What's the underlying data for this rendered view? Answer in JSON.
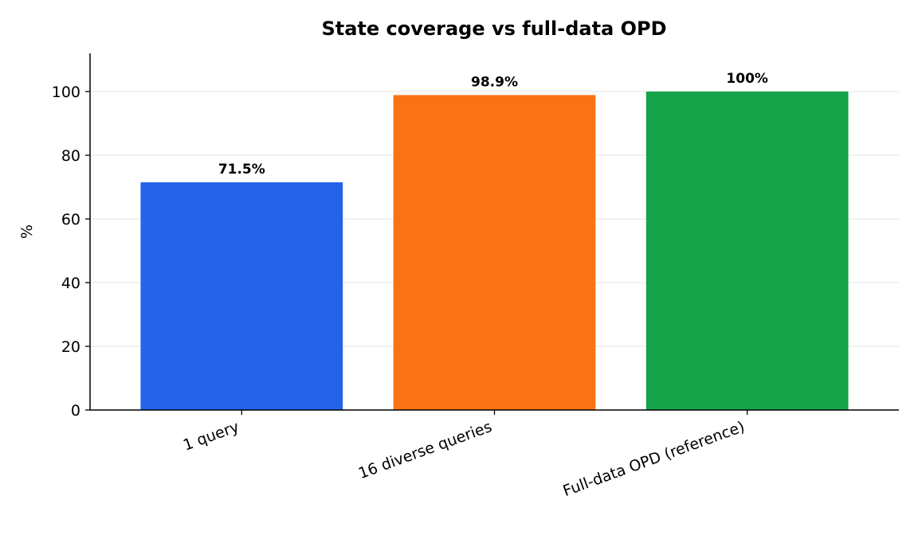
{
  "chart_data": {
    "type": "bar",
    "title": "State coverage vs full-data OPD",
    "xlabel": "",
    "ylabel": "%",
    "categories": [
      "1 query",
      "16 diverse queries",
      "Full-data OPD (reference)"
    ],
    "values": [
      71.5,
      98.9,
      100
    ],
    "value_labels": [
      "71.5%",
      "98.9%",
      "100%"
    ],
    "colors": [
      "#2563eb",
      "#f97316",
      "#16a34a"
    ],
    "ylim": [
      0,
      112
    ],
    "yticks": [
      0,
      20,
      40,
      60,
      80,
      100
    ],
    "grid": "horizontal",
    "legend": "none"
  }
}
